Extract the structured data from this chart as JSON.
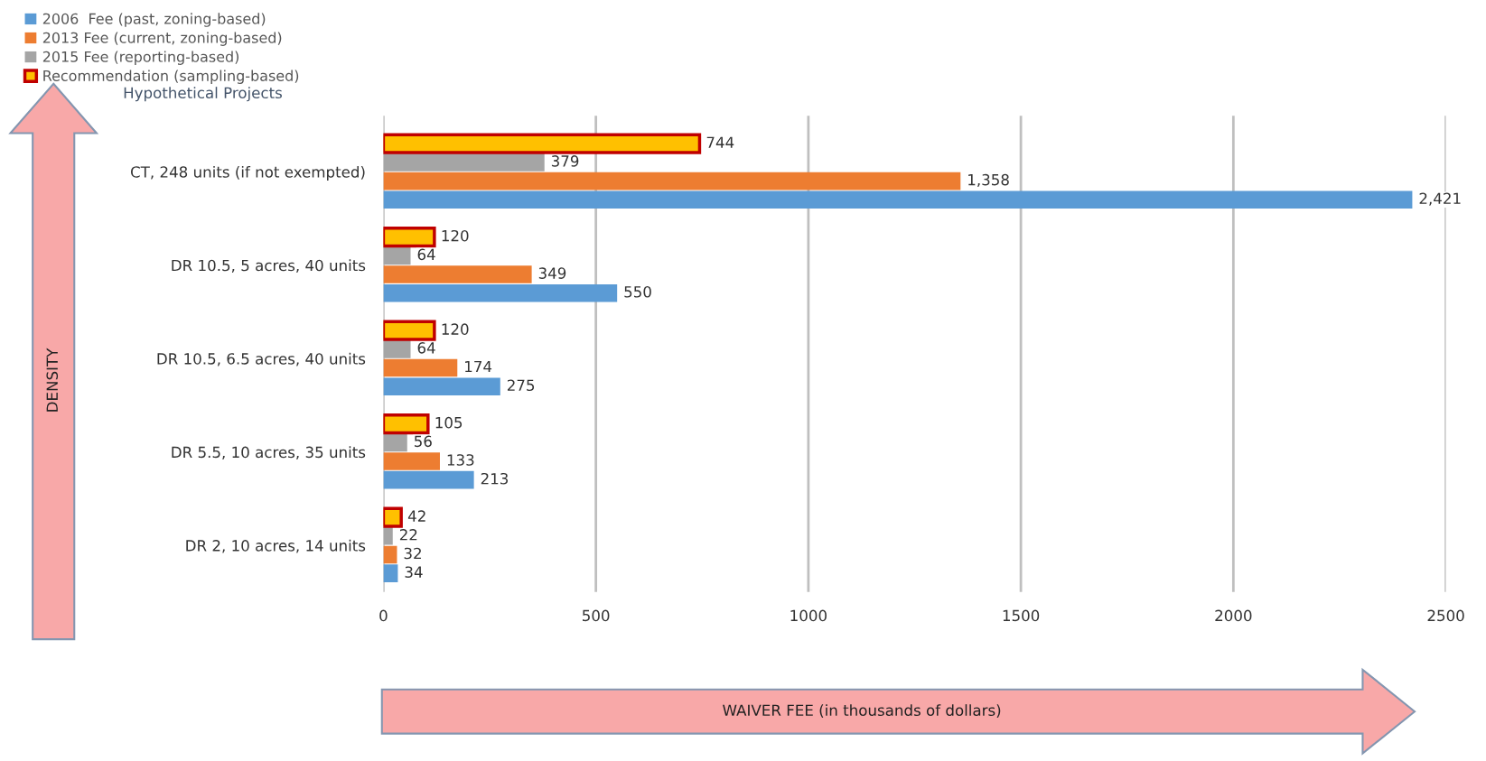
{
  "chart_data": {
    "type": "bar",
    "orientation": "horizontal",
    "ylabel": "Hypothetical Projects",
    "categories": [
      "CT, 248 units (if not exempted)",
      "DR 10.5, 5 acres, 40 units",
      "DR 10.5, 6.5 acres, 40 units",
      "DR 5.5, 10 acres, 35 units",
      "DR 2, 10 acres, 14 units"
    ],
    "series": [
      {
        "name": "2006  Fee (past, zoning-based)",
        "color": "#5b9bd5",
        "values": [
          2421,
          550,
          275,
          213,
          34
        ],
        "value_labels": [
          "2,421",
          "550",
          "275",
          "213",
          "34"
        ]
      },
      {
        "name": "2013 Fee (current, zoning-based)",
        "color": "#ed7d31",
        "values": [
          1358,
          349,
          174,
          133,
          32
        ],
        "value_labels": [
          "1,358",
          "349",
          "174",
          "133",
          "32"
        ]
      },
      {
        "name": "2015 Fee (reporting-based)",
        "color": "#a5a5a5",
        "values": [
          379,
          64,
          64,
          56,
          22
        ],
        "value_labels": [
          "379",
          "64",
          "64",
          "56",
          "22"
        ]
      },
      {
        "name": "Recommendation (sampling-based)",
        "color": "#ffc000",
        "values": [
          744,
          120,
          120,
          105,
          42
        ],
        "value_labels": [
          "744",
          "120",
          "120",
          "105",
          "42"
        ]
      }
    ],
    "xlim": [
      0,
      2500
    ],
    "xticks": [
      0,
      500,
      1000,
      1500,
      2000,
      2500
    ],
    "grid": "x",
    "legend": "top left",
    "annotations": [
      "DENSITY",
      "WAIVER FEE (in thousands of dollars)"
    ]
  }
}
